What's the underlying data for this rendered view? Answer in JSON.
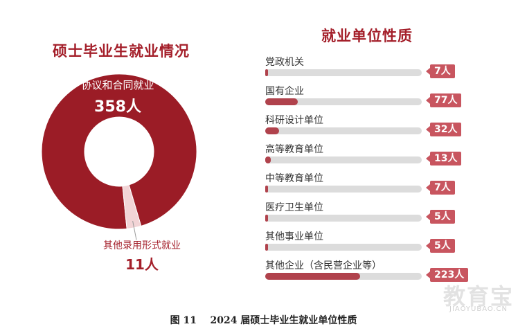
{
  "chart_data": [
    {
      "type": "pie",
      "title": "硕士毕业生就业情况",
      "slices": [
        {
          "label": "协议和合同就业",
          "value": 358,
          "value_text": "358人",
          "color": "#9b1c26"
        },
        {
          "label": "其他录用形式就业",
          "value": 11,
          "value_text": "11人",
          "color": "#f2d4d6"
        }
      ]
    },
    {
      "type": "bar",
      "title": "就业单位性质",
      "categories": [
        "党政机关",
        "国有企业",
        "科研设计单位",
        "高等教育单位",
        "中等教育单位",
        "医疗卫生单位",
        "其他事业单位",
        "其他企业（含民营企业等）"
      ],
      "values": [
        7,
        77,
        32,
        13,
        7,
        5,
        5,
        223
      ],
      "value_labels": [
        "7人",
        "77人",
        "32人",
        "13人",
        "7人",
        "5人",
        "5人",
        "223人"
      ],
      "bar_color": "#b0424c",
      "track_color": "#dcdcdc",
      "badge_color": "#c8555f"
    }
  ],
  "caption": "图 11    2024 届硕士毕业生就业单位性质",
  "watermark": {
    "text": "教育宝",
    "sub": "JIAOYUBAO.CN"
  }
}
